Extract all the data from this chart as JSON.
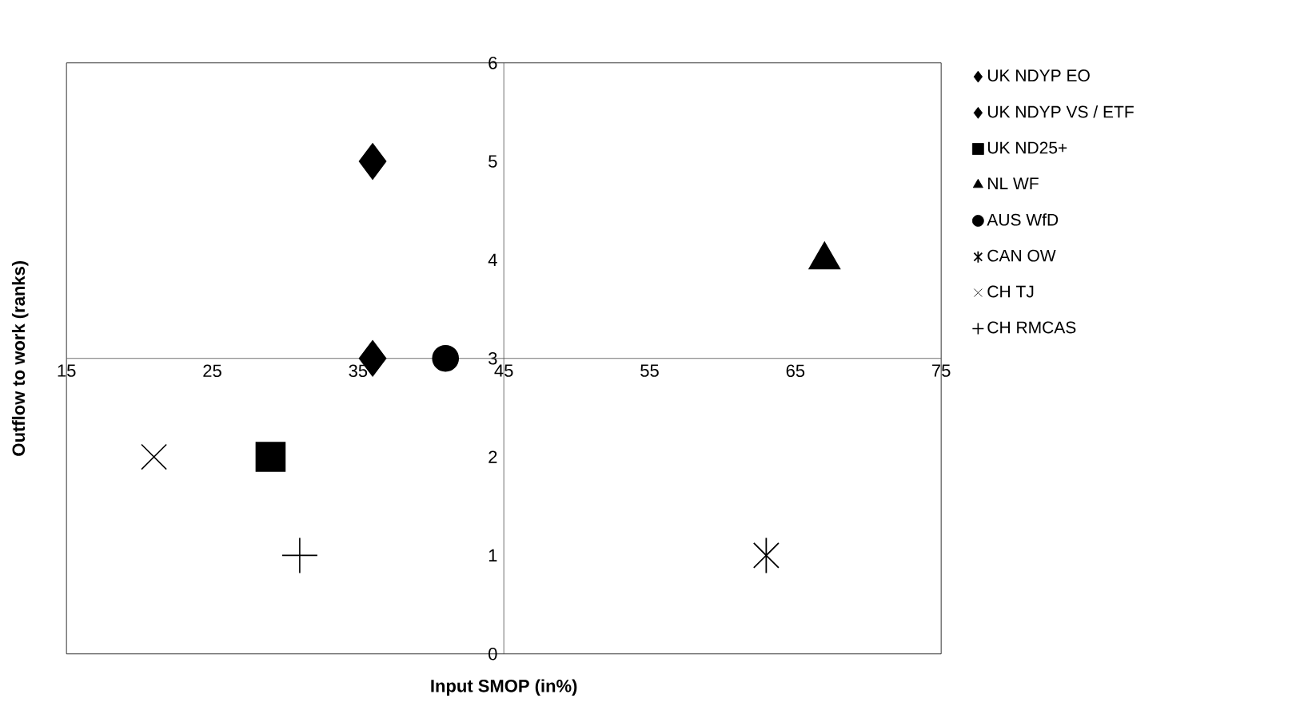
{
  "chart_data": {
    "type": "scatter",
    "xlabel": "Input SMOP (in%)",
    "ylabel": "Outflow to work (ranks)",
    "xlim": [
      15,
      75
    ],
    "xticks": [
      15,
      25,
      35,
      45,
      55,
      65,
      75
    ],
    "ylim": [
      0,
      6
    ],
    "yticks": [
      0,
      1,
      2,
      3,
      4,
      5,
      6
    ],
    "grid": false,
    "legend": "right",
    "series": [
      {
        "name": "UK NDYP EO",
        "color": "#000000",
        "marker": "diamond",
        "x": [
          36
        ],
        "values": [
          5
        ]
      },
      {
        "name": "UK NDYP VS / ETF",
        "color": "#000000",
        "marker": "diamond",
        "x": [
          36
        ],
        "values": [
          3
        ]
      },
      {
        "name": "UK ND25+",
        "color": "#000000",
        "marker": "square",
        "x": [
          29
        ],
        "values": [
          2
        ]
      },
      {
        "name": "NL WF",
        "color": "#000000",
        "marker": "triangle",
        "x": [
          67
        ],
        "values": [
          4
        ]
      },
      {
        "name": "AUS WfD",
        "color": "#000000",
        "marker": "circle",
        "x": [
          41
        ],
        "values": [
          3
        ]
      },
      {
        "name": "CAN OW",
        "color": "#000000",
        "marker": "star",
        "x": [
          63
        ],
        "values": [
          1
        ]
      },
      {
        "name": "CH TJ",
        "color": "#000000",
        "marker": "cross",
        "x": [
          21
        ],
        "values": [
          2
        ]
      },
      {
        "name": "CH RMCAS",
        "color": "#000000",
        "marker": "plus",
        "x": [
          31
        ],
        "values": [
          1
        ]
      }
    ]
  }
}
